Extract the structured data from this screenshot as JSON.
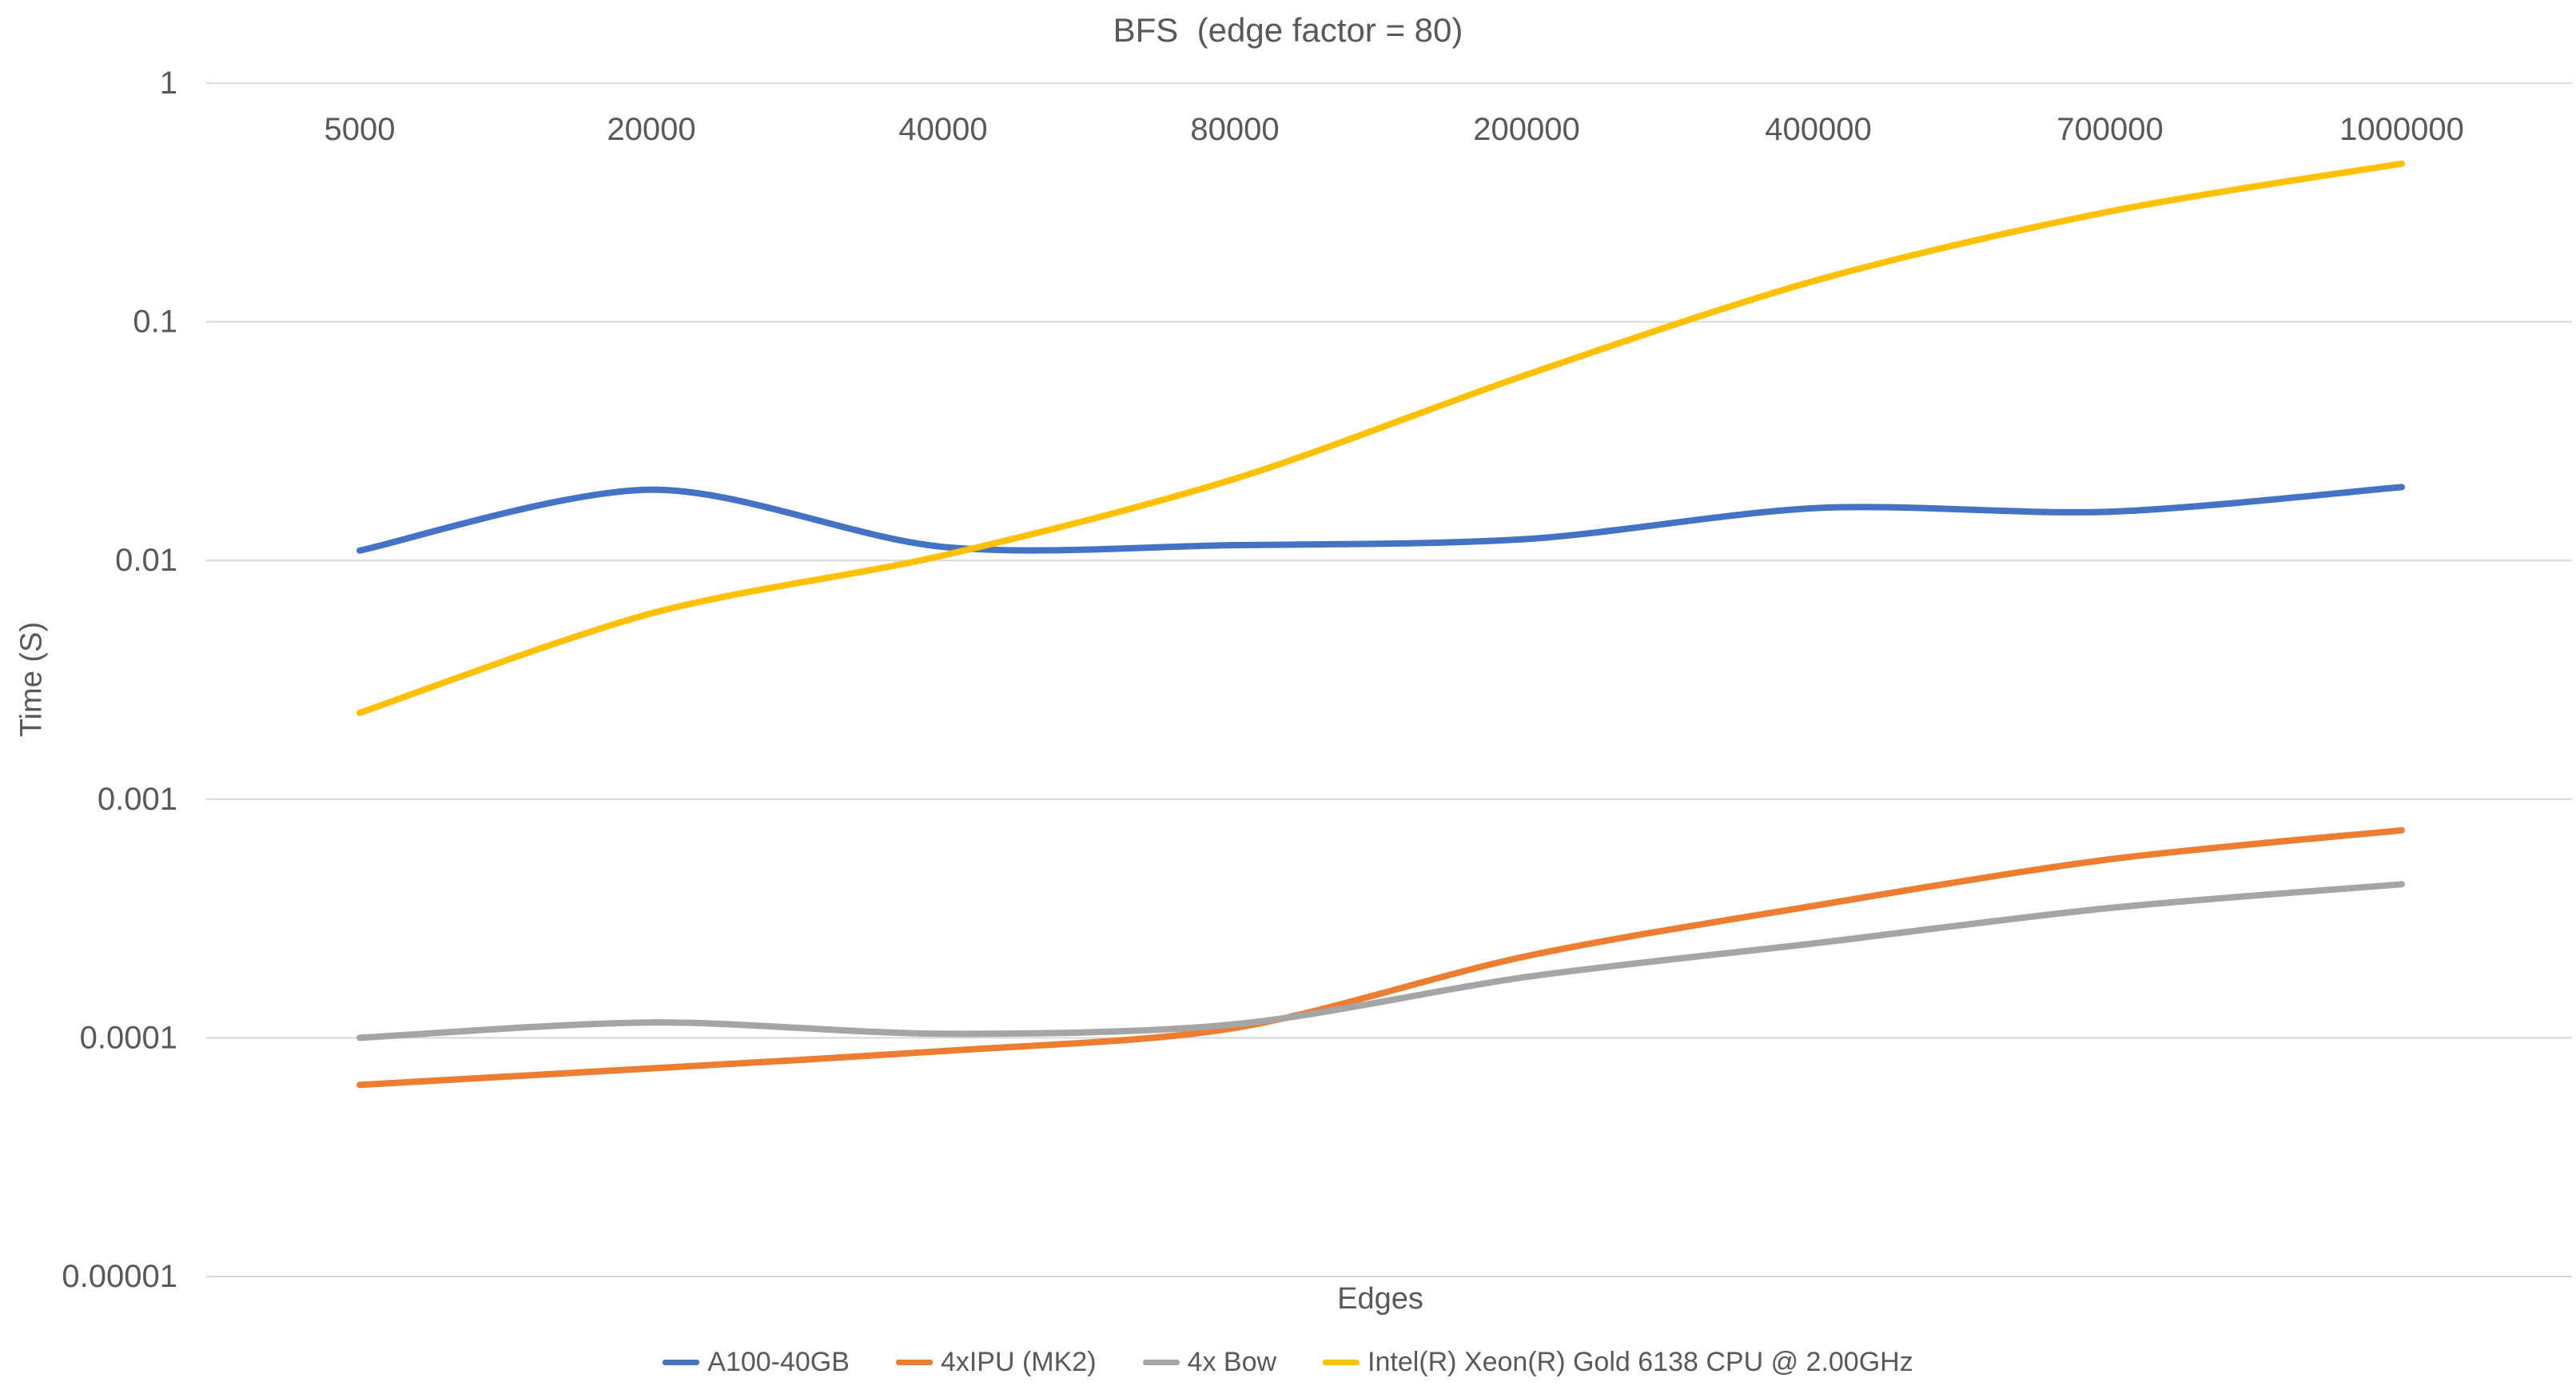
{
  "page": {
    "background": "#FFFFFF"
  },
  "chart_data": {
    "type": "line",
    "title": "BFS  (edge factor = 80)",
    "xlabel": "Edges",
    "ylabel": "Time (S)",
    "x_categories": [
      "5000",
      "20000",
      "40000",
      "80000",
      "200000",
      "400000",
      "700000",
      "1000000"
    ],
    "y_scale": "log",
    "ylim": [
      1e-05,
      1
    ],
    "y_ticks": [
      {
        "label": "1",
        "value": 1
      },
      {
        "label": "0.1",
        "value": 0.1
      },
      {
        "label": "0.01",
        "value": 0.01
      },
      {
        "label": "0.001",
        "value": 0.001
      },
      {
        "label": "0.0001",
        "value": 0.0001
      },
      {
        "label": "0.00001",
        "value": 1e-05
      }
    ],
    "grid": "horizontal",
    "gridline_color": "#D9D9D9",
    "legend_position": "bottom",
    "series": [
      {
        "name": "A100-40GB",
        "color": "#4472C4",
        "values": [
          0.011,
          0.0198,
          0.0114,
          0.0116,
          0.0123,
          0.0166,
          0.016,
          0.0203
        ]
      },
      {
        "name": "4xIPU (MK2)",
        "color": "#ED7D31",
        "values": [
          6.35e-05,
          7.45e-05,
          8.8e-05,
          0.00011,
          0.00022,
          0.00036,
          0.00056,
          0.00074
        ]
      },
      {
        "name": "4x Bow",
        "color": "#A5A5A5",
        "values": [
          0.0001,
          0.000116,
          0.000104,
          0.000114,
          0.00018,
          0.00025,
          0.00035,
          0.00044
        ]
      },
      {
        "name": "Intel(R) Xeon(R) Gold 6138 CPU @ 2.00GHz",
        "color": "#FFC000",
        "values": [
          0.0023,
          0.006,
          0.0105,
          0.022,
          0.06,
          0.15,
          0.29,
          0.46
        ]
      }
    ]
  }
}
